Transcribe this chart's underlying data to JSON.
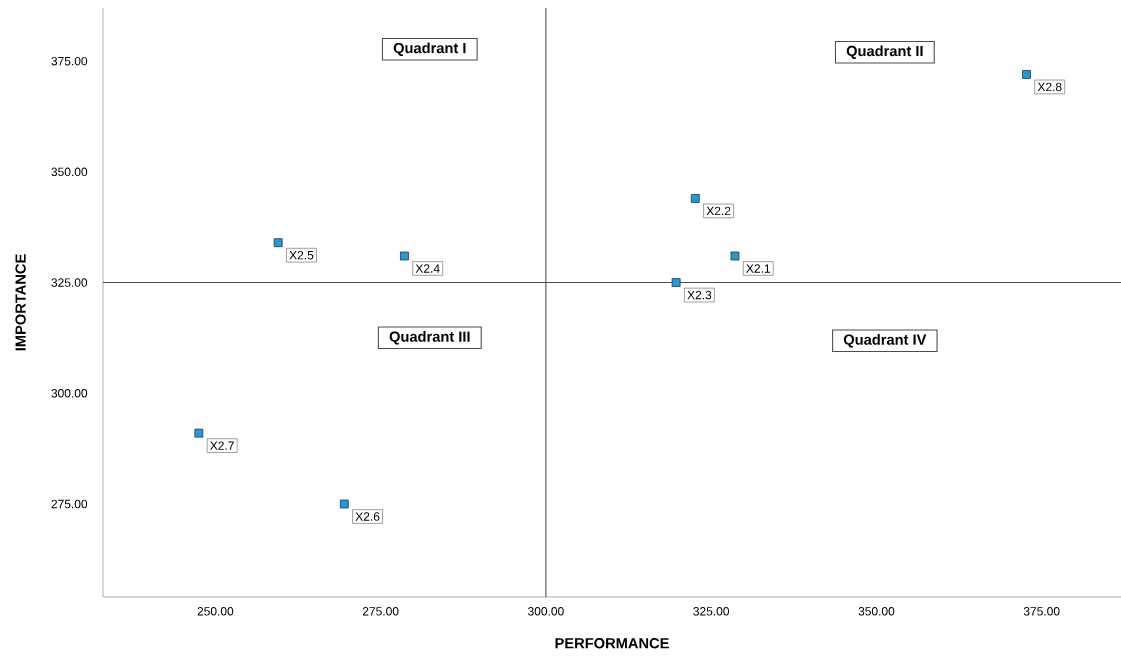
{
  "chart_data": {
    "type": "scatter",
    "xlabel": "PERFORMANCE",
    "ylabel": "IMPORTANCE",
    "xlim": [
      233,
      387
    ],
    "ylim": [
      254,
      387
    ],
    "xticks": [
      {
        "value": 250,
        "label": "250.00"
      },
      {
        "value": 275,
        "label": "275.00"
      },
      {
        "value": 300,
        "label": "300.00"
      },
      {
        "value": 325,
        "label": "325.00"
      },
      {
        "value": 350,
        "label": "350.00"
      },
      {
        "value": 375,
        "label": "375.00"
      }
    ],
    "yticks": [
      {
        "value": 275,
        "label": "275.00"
      },
      {
        "value": 300,
        "label": "300.00"
      },
      {
        "value": 325,
        "label": "325.00"
      },
      {
        "value": 350,
        "label": "350.00"
      },
      {
        "value": 375,
        "label": "375.00"
      }
    ],
    "marker": "square",
    "series": [
      {
        "color": "#1e9ae0",
        "x": [
          328.6,
          322.6,
          319.7,
          278.6,
          259.5,
          269.5,
          247.5,
          372.7
        ],
        "values": [
          331,
          344,
          325,
          331,
          334,
          275,
          291,
          372
        ]
      }
    ],
    "ref_lines": [
      {
        "axis": "x",
        "value": 300,
        "label": null
      },
      {
        "axis": "y",
        "value": 325,
        "label": null
      }
    ],
    "annotations": [
      "Quadrant I",
      "Quadrant II",
      "Quadrant III",
      "Quadrant IV",
      {
        "text": "X2.1",
        "x": 328.6,
        "y": 331
      },
      {
        "text": "X2.2",
        "x": 322.6,
        "y": 344
      },
      {
        "text": "X2.3",
        "x": 319.7,
        "y": 325
      },
      {
        "text": "X2.4",
        "x": 278.6,
        "y": 331
      },
      {
        "text": "X2.5",
        "x": 259.5,
        "y": 334
      },
      {
        "text": "X2.6",
        "x": 269.5,
        "y": 275
      },
      {
        "text": "X2.7",
        "x": 247.5,
        "y": 291
      },
      {
        "text": "X2.8",
        "x": 372.7,
        "y": 372
      }
    ]
  }
}
